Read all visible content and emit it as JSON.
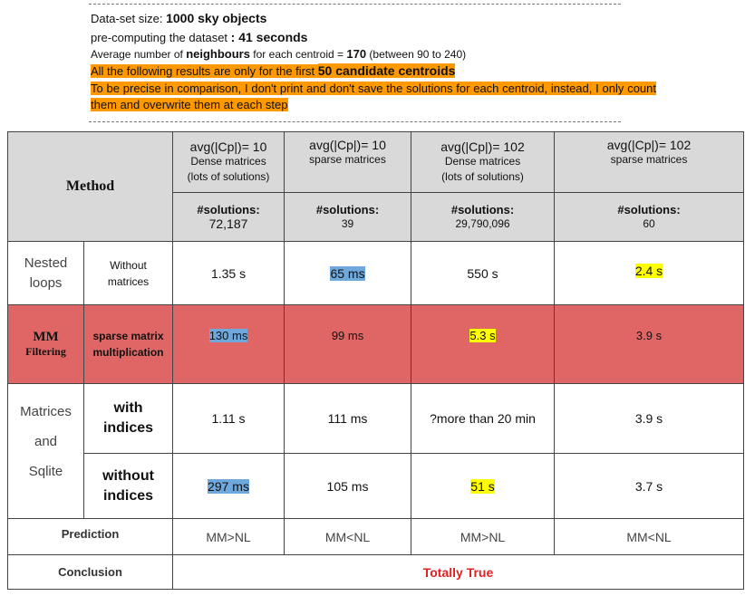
{
  "intro": {
    "line1": [
      "Data-set size: ",
      "1000 sky objects"
    ],
    "line2": [
      "pre-computing the dataset ",
      ": 41 seconds"
    ],
    "line3": [
      "Average number of ",
      "neighbours",
      " for each centroid = ",
      "170",
      " (between 90 to 240)"
    ],
    "line4": [
      "All the following results are only for the first ",
      "50 candidate centroids"
    ],
    "line5": "To be precise in comparison, I don't print and don't save the solutions for each centroid,  instead, I only count them and overwrite them at each step"
  },
  "table": {
    "method": "Method",
    "columns": [
      {
        "avg": "avg(|Cp|)= 10",
        "desc": [
          "Dense matrices",
          "(lots of solutions)"
        ],
        "solutions_label": "#solutions:",
        "solutions": "72,187"
      },
      {
        "avg": "avg(|Cp|)= 10",
        "desc": [
          "sparse matrices"
        ],
        "solutions_label": "#solutions:",
        "solutions": "39"
      },
      {
        "avg": "avg(|Cp|)= 102",
        "desc": [
          "Dense matrices",
          "(lots of solutions)"
        ],
        "solutions_label": "#solutions:",
        "solutions": "29,790,096"
      },
      {
        "avg": "avg(|Cp|)= 102",
        "desc": [
          "sparse matrices"
        ],
        "solutions_label": "#solutions:",
        "solutions": "60"
      }
    ],
    "nested": {
      "group": "Nested loops",
      "variant": "Without matrices",
      "values": [
        "1.35 s",
        "65 ms",
        "550 s",
        "2.4 s"
      ]
    },
    "mm": {
      "group": [
        "MM",
        "Filtering"
      ],
      "variant": "sparse matrix multiplication",
      "values": [
        "130 ms",
        "99 ms",
        "5.3 s",
        "3.9 s"
      ]
    },
    "sqlite": {
      "group": [
        "Matrices",
        "and",
        "Sqlite"
      ],
      "with": {
        "variant": "with indices",
        "values": [
          "1.11 s",
          "111 ms",
          "?more than 20 min",
          "3.9 s"
        ]
      },
      "without": {
        "variant": "without indices",
        "values": [
          "297 ms",
          "105 ms",
          "51 s",
          "3.7 s"
        ]
      }
    },
    "prediction": {
      "label": "Prediction",
      "values": [
        "MM>NL",
        "MM<NL",
        "MM>NL",
        "MM<NL"
      ]
    },
    "conclusion": {
      "label": "Conclusion",
      "value": "Totally True"
    }
  }
}
